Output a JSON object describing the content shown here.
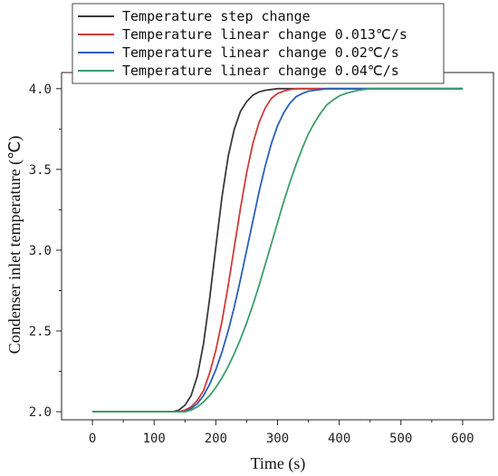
{
  "chart_data": {
    "type": "line",
    "xlabel": "Time (s)",
    "ylabel": "Condenser inlet temperature (℃)",
    "xlim": [
      -50,
      650
    ],
    "ylim": [
      1.95,
      4.1
    ],
    "xticks": [
      0,
      100,
      200,
      300,
      400,
      500,
      600
    ],
    "yticks": [
      2.0,
      2.5,
      3.0,
      3.5,
      4.0
    ],
    "xtick_labels": [
      "0",
      "100",
      "200",
      "300",
      "400",
      "500",
      "600"
    ],
    "ytick_labels": [
      "2.0",
      "2.5",
      "3.0",
      "3.5",
      "4.0"
    ],
    "legend_position": "top-left",
    "grid": false,
    "series": [
      {
        "name": "Temperature step change",
        "color": "#3a3a3a",
        "x": [
          0,
          100,
          130,
          140,
          150,
          160,
          170,
          180,
          190,
          200,
          210,
          220,
          230,
          240,
          250,
          260,
          270,
          280,
          290,
          300,
          320,
          350,
          400,
          600
        ],
        "y": [
          2.0,
          2.0,
          2.0,
          2.01,
          2.04,
          2.1,
          2.22,
          2.42,
          2.7,
          3.02,
          3.33,
          3.58,
          3.75,
          3.86,
          3.92,
          3.96,
          3.98,
          3.99,
          3.995,
          4.0,
          4.0,
          4.0,
          4.0,
          4.0
        ]
      },
      {
        "name": "Temperature linear change 0.013℃/s",
        "color": "#d03a3a",
        "x": [
          0,
          100,
          140,
          150,
          160,
          170,
          180,
          190,
          200,
          210,
          220,
          230,
          240,
          250,
          260,
          270,
          280,
          290,
          300,
          310,
          320,
          330,
          340,
          360,
          400,
          600
        ],
        "y": [
          2.0,
          2.0,
          2.0,
          2.01,
          2.03,
          2.07,
          2.13,
          2.24,
          2.38,
          2.56,
          2.78,
          3.02,
          3.26,
          3.48,
          3.66,
          3.79,
          3.88,
          3.94,
          3.97,
          3.985,
          3.995,
          4.0,
          4.0,
          4.0,
          4.0,
          4.0
        ]
      },
      {
        "name": "Temperature linear change 0.02℃/s",
        "color": "#2b5fb8",
        "x": [
          0,
          100,
          140,
          150,
          160,
          170,
          180,
          190,
          200,
          210,
          220,
          230,
          240,
          250,
          260,
          270,
          280,
          290,
          300,
          310,
          320,
          330,
          340,
          350,
          360,
          370,
          380,
          400,
          420,
          450,
          600
        ],
        "y": [
          2.0,
          2.0,
          2.0,
          2.0,
          2.02,
          2.05,
          2.1,
          2.17,
          2.26,
          2.37,
          2.5,
          2.65,
          2.82,
          3.0,
          3.18,
          3.36,
          3.52,
          3.66,
          3.77,
          3.85,
          3.91,
          3.95,
          3.97,
          3.985,
          3.99,
          3.995,
          4.0,
          4.0,
          4.0,
          4.0,
          4.0
        ]
      },
      {
        "name": "Temperature linear change 0.04℃/s",
        "color": "#3a9e6a",
        "x": [
          0,
          100,
          140,
          150,
          160,
          170,
          180,
          190,
          200,
          210,
          220,
          230,
          240,
          250,
          260,
          270,
          280,
          290,
          300,
          310,
          320,
          330,
          340,
          350,
          360,
          370,
          380,
          390,
          400,
          410,
          420,
          430,
          440,
          450,
          470,
          500,
          600
        ],
        "y": [
          2.0,
          2.0,
          2.0,
          2.0,
          2.01,
          2.03,
          2.06,
          2.1,
          2.15,
          2.21,
          2.28,
          2.36,
          2.45,
          2.55,
          2.66,
          2.78,
          2.91,
          3.04,
          3.17,
          3.3,
          3.42,
          3.53,
          3.63,
          3.72,
          3.79,
          3.85,
          3.9,
          3.93,
          3.955,
          3.97,
          3.98,
          3.99,
          3.995,
          4.0,
          4.0,
          4.0,
          4.0
        ]
      }
    ]
  }
}
